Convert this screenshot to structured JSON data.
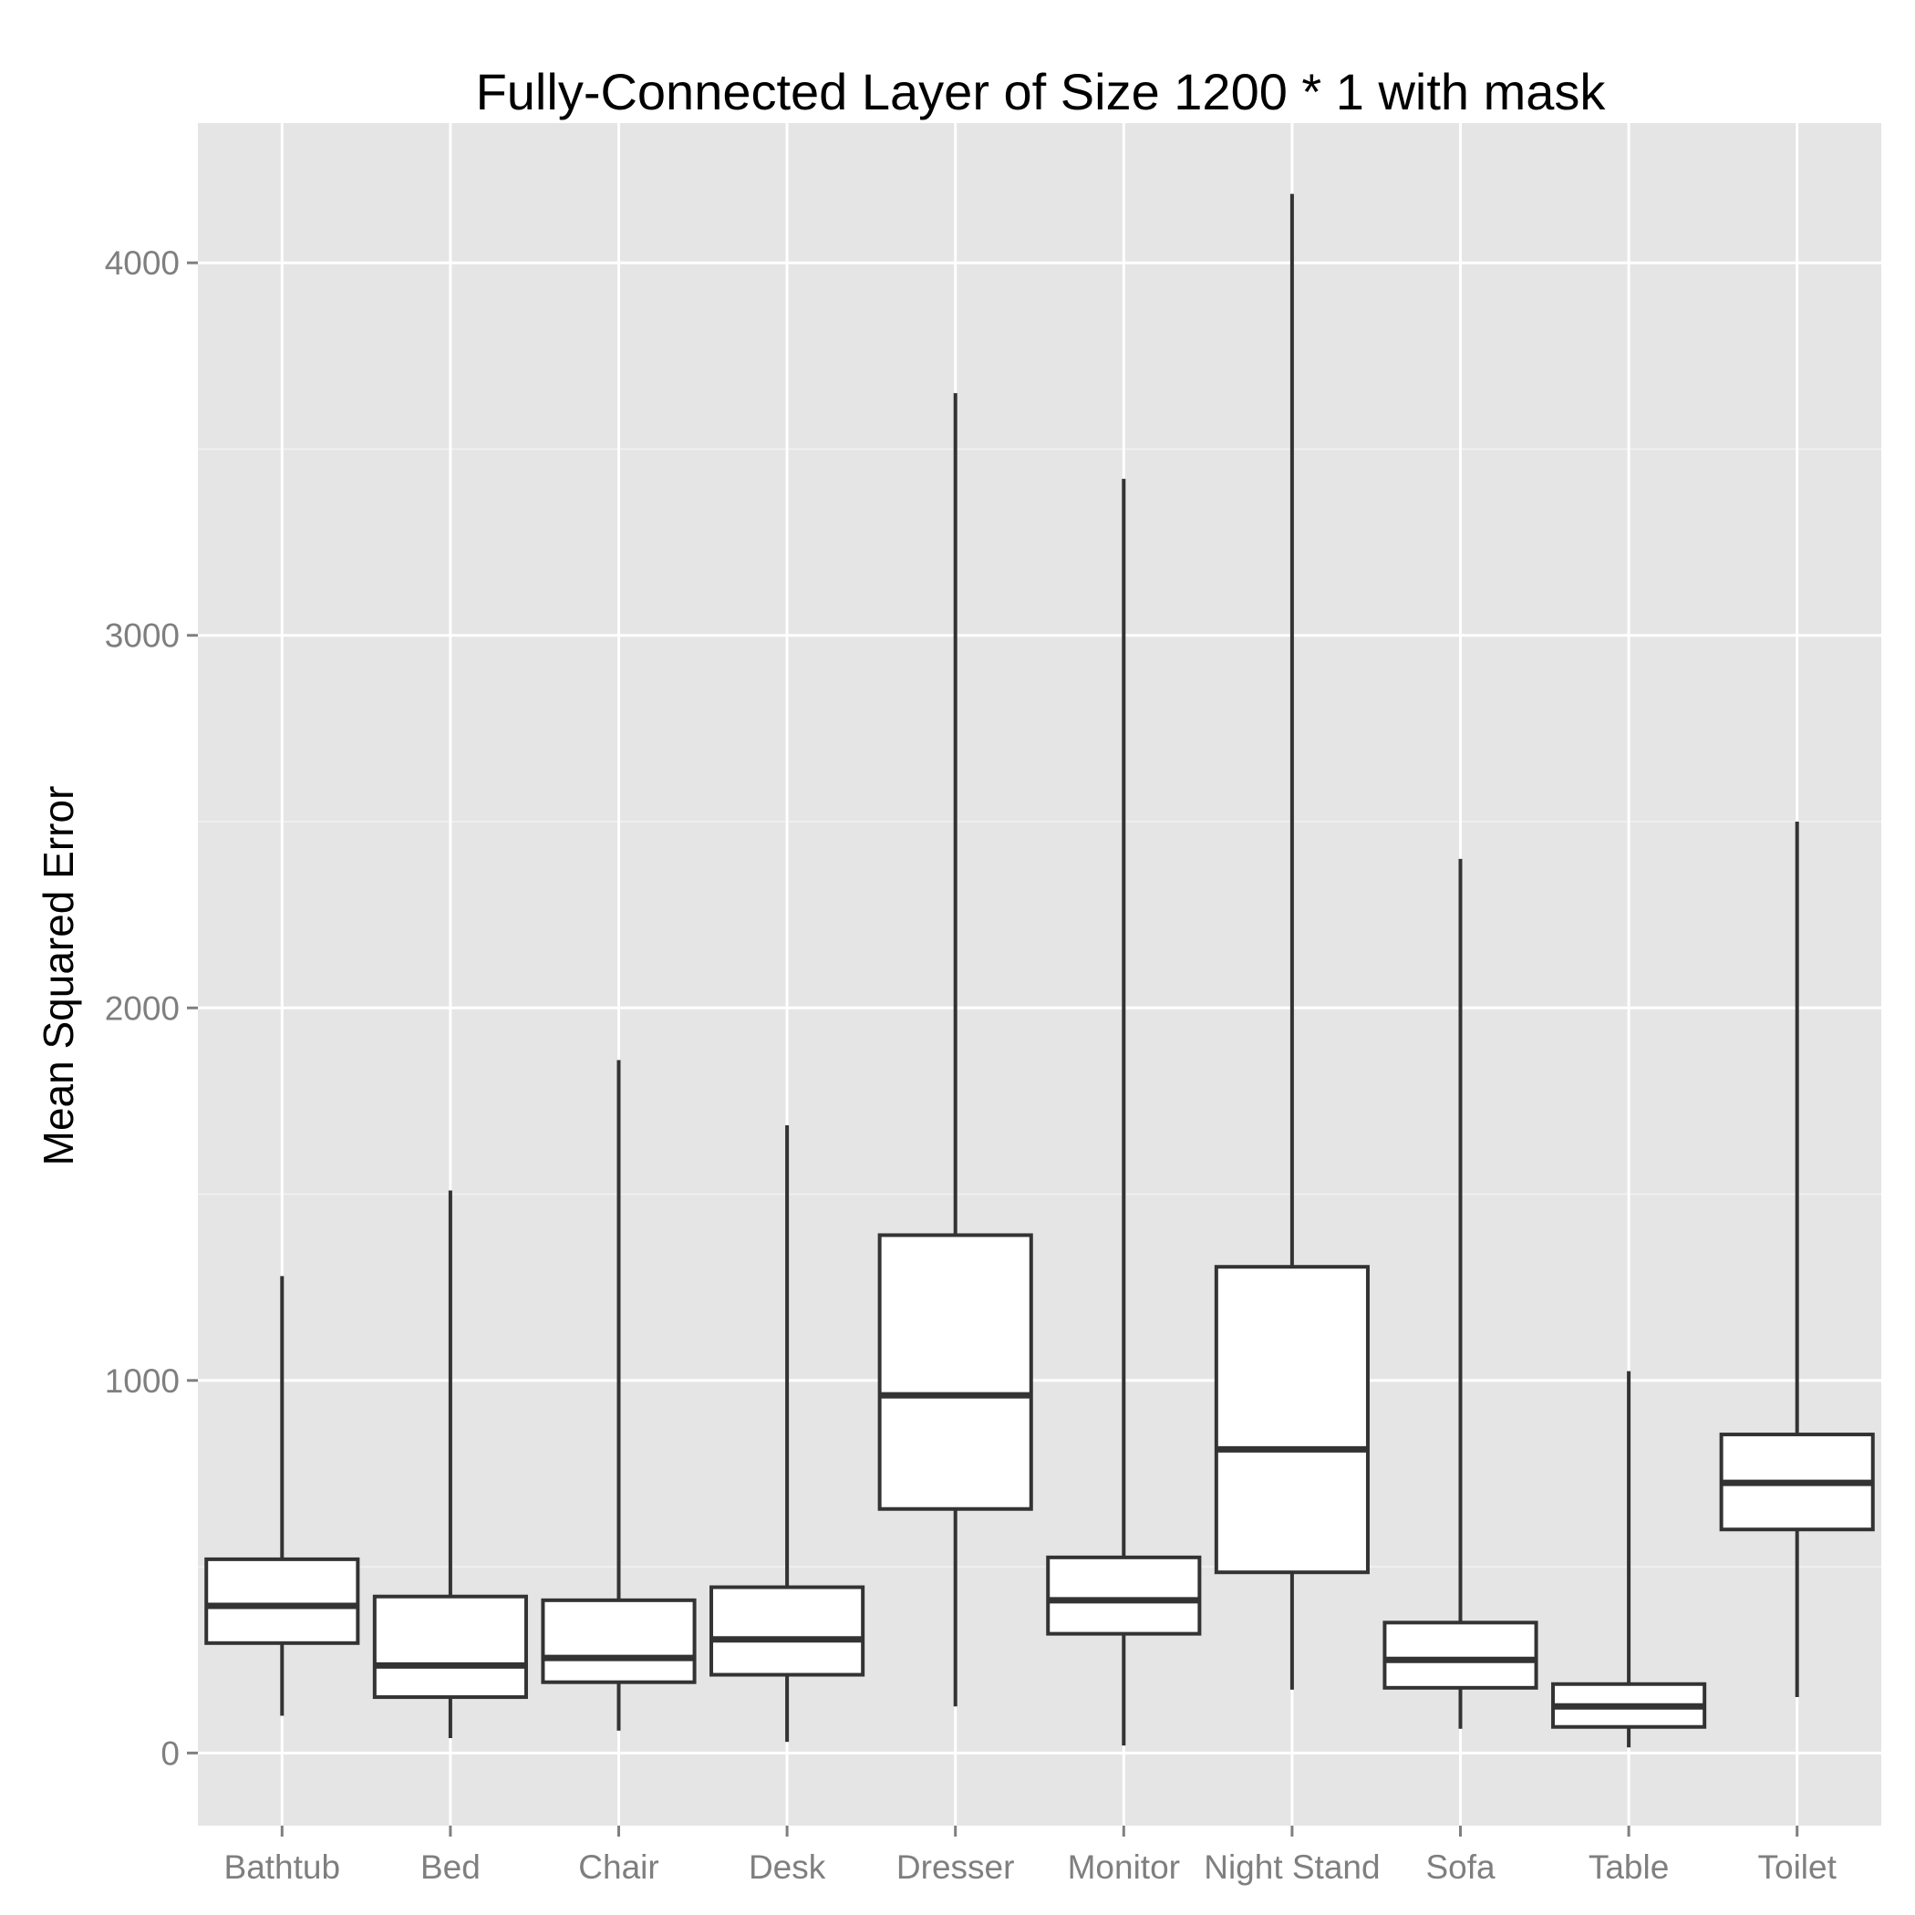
{
  "chart_data": {
    "type": "boxplot",
    "title": "Fully-Connected Layer of Size 1200 * 1 with mask",
    "xlabel": "",
    "ylabel": "Mean Squared Error",
    "ylim": [
      -195,
      4375
    ],
    "yticks": [
      0,
      1000,
      2000,
      3000,
      4000
    ],
    "ytick_labels": [
      "0",
      "1000",
      "2000",
      "3000",
      "4000"
    ],
    "grid": true,
    "categories": [
      "Bathtub",
      "Bed",
      "Chair",
      "Desk",
      "Dresser",
      "Monitor",
      "Night Stand",
      "Sofa",
      "Table",
      "Toilet"
    ],
    "boxes": [
      {
        "category": "Bathtub",
        "whisker_low": 100,
        "q1": 295,
        "median": 395,
        "q3": 520,
        "whisker_high": 1280
      },
      {
        "category": "Bed",
        "whisker_low": 40,
        "q1": 150,
        "median": 235,
        "q3": 420,
        "whisker_high": 1510
      },
      {
        "category": "Chair",
        "whisker_low": 60,
        "q1": 190,
        "median": 255,
        "q3": 410,
        "whisker_high": 1860
      },
      {
        "category": "Desk",
        "whisker_low": 30,
        "q1": 210,
        "median": 305,
        "q3": 445,
        "whisker_high": 1685
      },
      {
        "category": "Dresser",
        "whisker_low": 125,
        "q1": 655,
        "median": 960,
        "q3": 1390,
        "whisker_high": 3650
      },
      {
        "category": "Monitor",
        "whisker_low": 20,
        "q1": 320,
        "median": 410,
        "q3": 525,
        "whisker_high": 3420
      },
      {
        "category": "Night Stand",
        "whisker_low": 170,
        "q1": 485,
        "median": 815,
        "q3": 1305,
        "whisker_high": 4185
      },
      {
        "category": "Sofa",
        "whisker_low": 65,
        "q1": 175,
        "median": 250,
        "q3": 350,
        "whisker_high": 2400
      },
      {
        "category": "Table",
        "whisker_low": 15,
        "q1": 70,
        "median": 125,
        "q3": 185,
        "whisker_high": 1025
      },
      {
        "category": "Toilet",
        "whisker_low": 150,
        "q1": 600,
        "median": 725,
        "q3": 855,
        "whisker_high": 2500
      }
    ]
  }
}
